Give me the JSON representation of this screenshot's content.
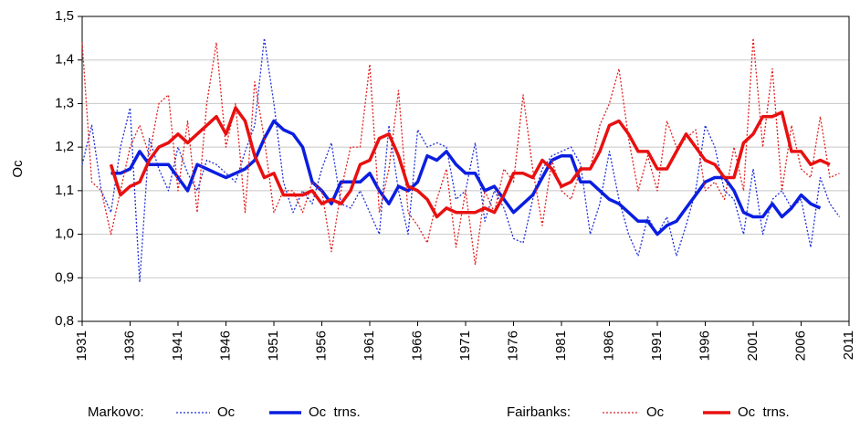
{
  "chart_data": {
    "type": "line",
    "ylabel": "Oc",
    "x": [
      1931,
      1932,
      1933,
      1934,
      1935,
      1936,
      1937,
      1938,
      1939,
      1940,
      1941,
      1942,
      1943,
      1944,
      1945,
      1946,
      1947,
      1948,
      1949,
      1950,
      1951,
      1952,
      1953,
      1954,
      1955,
      1956,
      1957,
      1958,
      1959,
      1960,
      1961,
      1962,
      1963,
      1964,
      1965,
      1966,
      1967,
      1968,
      1969,
      1970,
      1971,
      1972,
      1973,
      1974,
      1975,
      1976,
      1977,
      1978,
      1979,
      1980,
      1981,
      1982,
      1983,
      1984,
      1985,
      1986,
      1987,
      1988,
      1989,
      1990,
      1991,
      1992,
      1993,
      1994,
      1995,
      1996,
      1997,
      1998,
      1999,
      2000,
      2001,
      2002,
      2003,
      2004,
      2005,
      2006,
      2007,
      2008,
      2009,
      2010
    ],
    "xlim": [
      1931,
      2011
    ],
    "xticks": [
      1931,
      1936,
      1941,
      1946,
      1951,
      1956,
      1961,
      1966,
      1971,
      1976,
      1981,
      1986,
      1991,
      1996,
      2001,
      2006,
      2011
    ],
    "ylim": [
      0.8,
      1.5
    ],
    "yticks": [
      {
        "value": 0.8,
        "label": "0,8"
      },
      {
        "value": 0.9,
        "label": "0,9"
      },
      {
        "value": 1.0,
        "label": "1,0"
      },
      {
        "value": 1.1,
        "label": "1,1"
      },
      {
        "value": 1.2,
        "label": "1,2"
      },
      {
        "value": 1.3,
        "label": "1,3"
      },
      {
        "value": 1.4,
        "label": "1,4"
      },
      {
        "value": 1.5,
        "label": "1,5"
      }
    ],
    "grid": true,
    "legend_groups": [
      "Markovo:",
      "Fairbanks:"
    ],
    "series": [
      {
        "name": "Oc",
        "color": "#1f2fd8",
        "dash": true,
        "values": [
          1.16,
          1.25,
          1.1,
          1.05,
          1.2,
          1.29,
          0.89,
          1.22,
          1.15,
          1.1,
          1.2,
          1.14,
          1.1,
          1.17,
          1.16,
          1.14,
          1.12,
          1.19,
          1.25,
          1.45,
          1.3,
          1.12,
          1.05,
          1.1,
          1.07,
          1.15,
          1.21,
          1.07,
          1.06,
          1.1,
          1.05,
          1.0,
          1.25,
          1.1,
          1.0,
          1.24,
          1.2,
          1.21,
          1.2,
          1.08,
          1.1,
          1.21,
          1.03,
          1.1,
          1.06,
          0.99,
          0.98,
          1.08,
          1.15,
          1.18,
          1.19,
          1.2,
          1.16,
          1.0,
          1.07,
          1.19,
          1.08,
          1.0,
          0.95,
          1.04,
          1.0,
          1.04,
          0.95,
          1.02,
          1.1,
          1.25,
          1.2,
          1.1,
          1.08,
          1.0,
          1.15,
          1.0,
          1.08,
          1.1,
          1.06,
          1.08,
          0.97,
          1.13,
          1.07,
          1.04
        ]
      },
      {
        "name": "Oc  trns.",
        "color": "#0a1ee0",
        "dash": false,
        "values": [
          null,
          null,
          null,
          1.14,
          1.14,
          1.15,
          1.19,
          1.16,
          1.16,
          1.16,
          1.13,
          1.1,
          1.16,
          1.15,
          1.14,
          1.13,
          1.14,
          1.15,
          1.17,
          1.22,
          1.26,
          1.24,
          1.23,
          1.2,
          1.12,
          1.1,
          1.07,
          1.12,
          1.12,
          1.12,
          1.14,
          1.1,
          1.07,
          1.11,
          1.1,
          1.12,
          1.18,
          1.17,
          1.19,
          1.16,
          1.14,
          1.14,
          1.1,
          1.11,
          1.08,
          1.05,
          1.07,
          1.09,
          1.13,
          1.17,
          1.18,
          1.18,
          1.12,
          1.12,
          1.1,
          1.08,
          1.07,
          1.05,
          1.03,
          1.03,
          1.0,
          1.02,
          1.03,
          1.06,
          1.09,
          1.12,
          1.13,
          1.13,
          1.1,
          1.05,
          1.04,
          1.04,
          1.07,
          1.04,
          1.06,
          1.09,
          1.07,
          1.06,
          null,
          null
        ]
      },
      {
        "name": "Oc",
        "color": "#e02020",
        "dash": true,
        "values": [
          1.44,
          1.12,
          1.1,
          1.0,
          1.1,
          1.2,
          1.25,
          1.18,
          1.3,
          1.32,
          1.1,
          1.26,
          1.05,
          1.3,
          1.44,
          1.2,
          1.3,
          1.05,
          1.35,
          1.22,
          1.05,
          1.1,
          1.1,
          1.05,
          1.12,
          1.1,
          0.96,
          1.1,
          1.2,
          1.2,
          1.39,
          1.05,
          1.15,
          1.33,
          1.05,
          1.02,
          0.98,
          1.08,
          1.15,
          0.97,
          1.1,
          0.93,
          1.1,
          1.05,
          1.15,
          1.12,
          1.32,
          1.15,
          1.02,
          1.17,
          1.1,
          1.08,
          1.15,
          1.15,
          1.25,
          1.3,
          1.38,
          1.22,
          1.1,
          1.18,
          1.1,
          1.26,
          1.2,
          1.22,
          1.24,
          1.1,
          1.12,
          1.08,
          1.2,
          1.1,
          1.45,
          1.2,
          1.38,
          1.1,
          1.25,
          1.15,
          1.13,
          1.27,
          1.13,
          1.14
        ]
      },
      {
        "name": "Oc  trns.",
        "color": "#e81010",
        "dash": false,
        "values": [
          null,
          null,
          null,
          1.16,
          1.09,
          1.11,
          1.12,
          1.17,
          1.2,
          1.21,
          1.23,
          1.21,
          1.23,
          1.25,
          1.27,
          1.23,
          1.29,
          1.26,
          1.18,
          1.13,
          1.14,
          1.09,
          1.09,
          1.09,
          1.1,
          1.07,
          1.08,
          1.07,
          1.1,
          1.16,
          1.17,
          1.22,
          1.23,
          1.18,
          1.11,
          1.1,
          1.08,
          1.04,
          1.06,
          1.05,
          1.05,
          1.05,
          1.06,
          1.05,
          1.09,
          1.14,
          1.14,
          1.13,
          1.17,
          1.15,
          1.11,
          1.12,
          1.15,
          1.15,
          1.19,
          1.25,
          1.26,
          1.23,
          1.19,
          1.19,
          1.15,
          1.15,
          1.19,
          1.23,
          1.2,
          1.17,
          1.16,
          1.13,
          1.13,
          1.21,
          1.23,
          1.27,
          1.27,
          1.28,
          1.19,
          1.19,
          1.16,
          1.17,
          1.16,
          null
        ]
      }
    ]
  }
}
